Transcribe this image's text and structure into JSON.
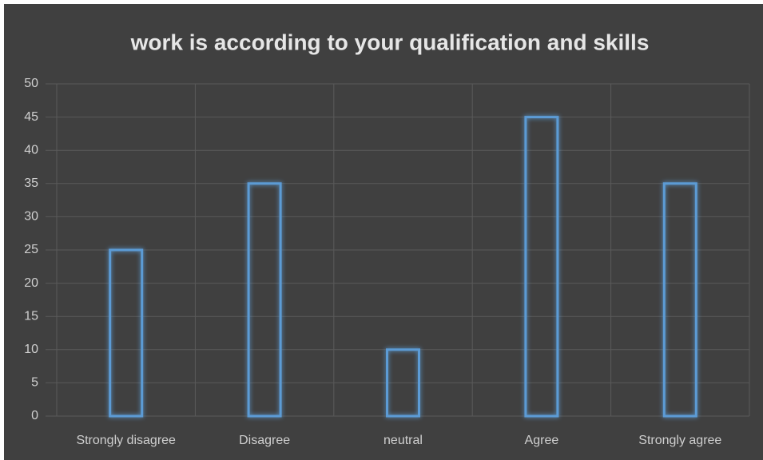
{
  "chart_data": {
    "type": "bar",
    "title": "work is according to your qualification and skills",
    "categories": [
      "Strongly disagree",
      "Disagree",
      "neutral",
      "Agree",
      "Strongly agree"
    ],
    "values": [
      25,
      35,
      10,
      45,
      35
    ],
    "color": "#5b9bd5",
    "ylim": [
      0,
      50
    ],
    "yticks": [
      0,
      5,
      10,
      15,
      20,
      25,
      30,
      35,
      40,
      45,
      50
    ],
    "grid": true
  }
}
